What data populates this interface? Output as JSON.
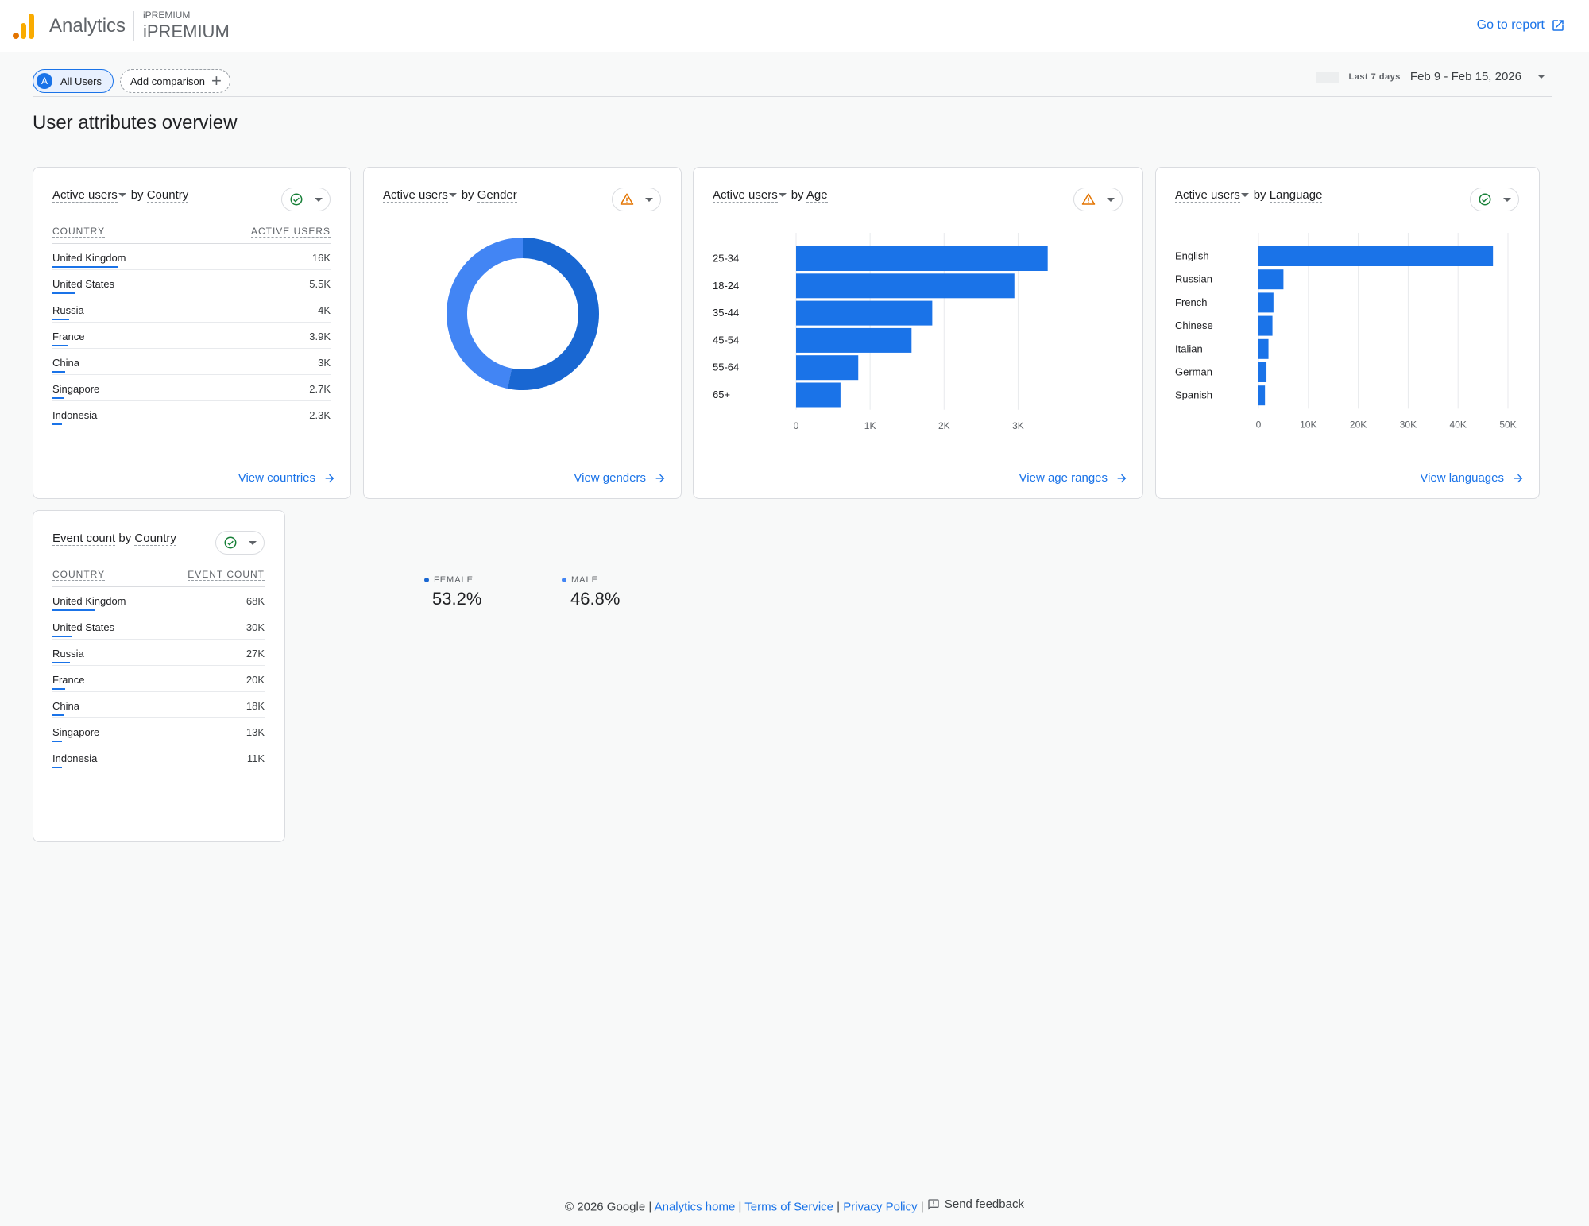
{
  "header": {
    "app_name": "Analytics",
    "account_small": "iPREMIUM",
    "account_big": "iPREMIUM",
    "goto_report": "Go to report"
  },
  "filters": {
    "segment_letter": "A",
    "segment_label": "All Users",
    "add_comparison": "Add comparison",
    "date_label": "Last 7 days",
    "date_range": "Feb 9 - Feb 15, 2026"
  },
  "page_title": "User attributes overview",
  "country_card": {
    "metric": "Active users",
    "by": "by",
    "dimension": "Country",
    "col1": "COUNTRY",
    "col2": "ACTIVE USERS",
    "rows": [
      {
        "name": "United Kingdom",
        "value": "16K",
        "frac": 1.0
      },
      {
        "name": "United States",
        "value": "5.5K",
        "frac": 0.34
      },
      {
        "name": "Russia",
        "value": "4K",
        "frac": 0.25
      },
      {
        "name": "France",
        "value": "3.9K",
        "frac": 0.24
      },
      {
        "name": "China",
        "value": "3K",
        "frac": 0.19
      },
      {
        "name": "Singapore",
        "value": "2.7K",
        "frac": 0.17
      },
      {
        "name": "Indonesia",
        "value": "2.3K",
        "frac": 0.14
      }
    ],
    "link": "View countries",
    "status": "ok",
    "status_color": "#188038"
  },
  "gender_card": {
    "metric": "Active users",
    "by": "by",
    "dimension": "Gender",
    "link": "View genders",
    "status": "warning",
    "status_color": "#e37400"
  },
  "age_card": {
    "metric": "Active users",
    "by": "by",
    "dimension": "Age",
    "link": "View age ranges",
    "status": "warning",
    "status_color": "#e37400"
  },
  "language_card": {
    "metric": "Active users",
    "by": "by",
    "dimension": "Language",
    "link": "View languages",
    "status": "ok",
    "status_color": "#188038"
  },
  "event_card": {
    "metric": "Event count",
    "by": "by",
    "dimension": "Country",
    "col1": "COUNTRY",
    "col2": "EVENT COUNT",
    "rows": [
      {
        "name": "United Kingdom",
        "value": "68K",
        "frac": 1.0
      },
      {
        "name": "United States",
        "value": "30K",
        "frac": 0.44
      },
      {
        "name": "Russia",
        "value": "27K",
        "frac": 0.4
      },
      {
        "name": "France",
        "value": "20K",
        "frac": 0.29
      },
      {
        "name": "China",
        "value": "18K",
        "frac": 0.26
      },
      {
        "name": "Singapore",
        "value": "13K",
        "frac": 0.19
      },
      {
        "name": "Indonesia",
        "value": "11K",
        "frac": 0.16
      }
    ],
    "status": "ok",
    "status_color": "#188038"
  },
  "chart_data": [
    {
      "type": "pie",
      "labels": [
        "FEMALE",
        "MALE"
      ],
      "values": [
        53.2,
        46.8
      ],
      "value_labels": [
        "53.2%",
        "46.8%"
      ],
      "colors": [
        "#1967d2",
        "#4285f4"
      ]
    },
    {
      "type": "bar",
      "orientation": "horizontal",
      "categories": [
        "25-34",
        "18-24",
        "35-44",
        "45-54",
        "55-64",
        "65+"
      ],
      "values": [
        3400,
        2950,
        1840,
        1560,
        840,
        600
      ],
      "xlim": [
        0,
        3500
      ],
      "ticks": [
        0,
        1000,
        2000,
        3000
      ],
      "tick_labels": [
        "0",
        "1K",
        "2K",
        "3K"
      ],
      "grid": true,
      "color": "#1a73e8"
    },
    {
      "type": "bar",
      "orientation": "horizontal",
      "categories": [
        "English",
        "Russian",
        "French",
        "Chinese",
        "Italian",
        "German",
        "Spanish"
      ],
      "values": [
        47000,
        5000,
        3000,
        2800,
        2000,
        1600,
        1300
      ],
      "xlim": [
        0,
        50000
      ],
      "ticks": [
        0,
        10000,
        20000,
        30000,
        40000,
        50000
      ],
      "tick_labels": [
        "0",
        "10K",
        "20K",
        "30K",
        "40K",
        "50K"
      ],
      "grid": true,
      "color": "#1a73e8"
    }
  ],
  "footer": {
    "copyright": "© 2026 Google |",
    "home": "Analytics home",
    "sep1": "|",
    "terms": "Terms of Service",
    "sep2": "|",
    "privacy": "Privacy Policy",
    "sep3": "|",
    "feedback": "Send feedback"
  }
}
